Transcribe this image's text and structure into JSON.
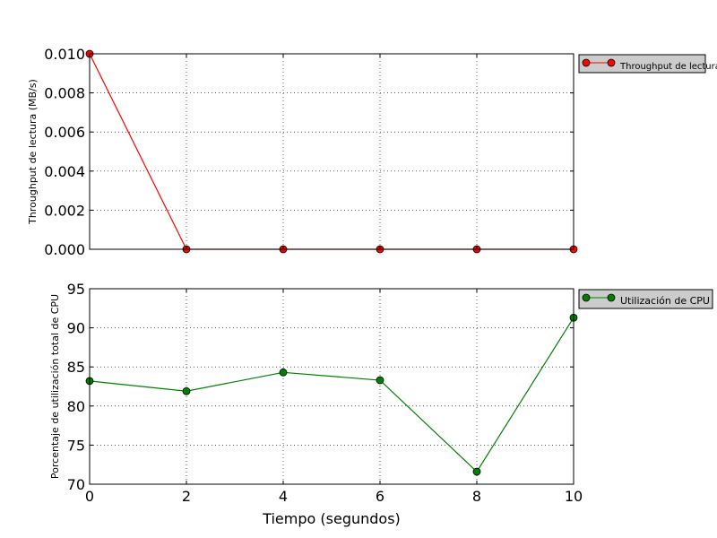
{
  "chart_data": [
    {
      "type": "line",
      "x": [
        0,
        2,
        4,
        6,
        8,
        10
      ],
      "series": [
        {
          "name": "Throughput de lectura",
          "values": [
            0.01,
            0.0,
            0.0,
            0.0,
            0.0,
            0.0
          ],
          "color": "#ff0000",
          "marker_color": "#ff0000"
        }
      ],
      "ylabel": "Throughput de lectura (MB/s)",
      "xlim": [
        0,
        10
      ],
      "ylim": [
        0,
        0.01
      ],
      "yticks": [
        "0.000",
        "0.002",
        "0.004",
        "0.006",
        "0.008",
        "0.010"
      ],
      "ytick_values": [
        0,
        0.002,
        0.004,
        0.006,
        0.008,
        0.01
      ],
      "grid": true,
      "legend": "outside-top-right"
    },
    {
      "type": "line",
      "x": [
        0,
        2,
        4,
        6,
        8,
        10
      ],
      "series": [
        {
          "name": "Utilización de CPU",
          "values": [
            83.2,
            81.9,
            84.3,
            83.3,
            71.6,
            91.3
          ],
          "color": "#008000",
          "marker_color": "#008000"
        }
      ],
      "ylabel": "Porcentaje de utilización total de CPU",
      "xlabel": "Tiempo (segundos)",
      "xlim": [
        0,
        10
      ],
      "ylim": [
        70,
        95
      ],
      "yticks": [
        "70",
        "75",
        "80",
        "85",
        "90",
        "95"
      ],
      "ytick_values": [
        70,
        75,
        80,
        85,
        90,
        95
      ],
      "xticks": [
        "0",
        "2",
        "4",
        "6",
        "8",
        "10"
      ],
      "xtick_values": [
        0,
        2,
        4,
        6,
        8,
        10
      ],
      "grid": true,
      "legend": "outside-top-right"
    }
  ]
}
